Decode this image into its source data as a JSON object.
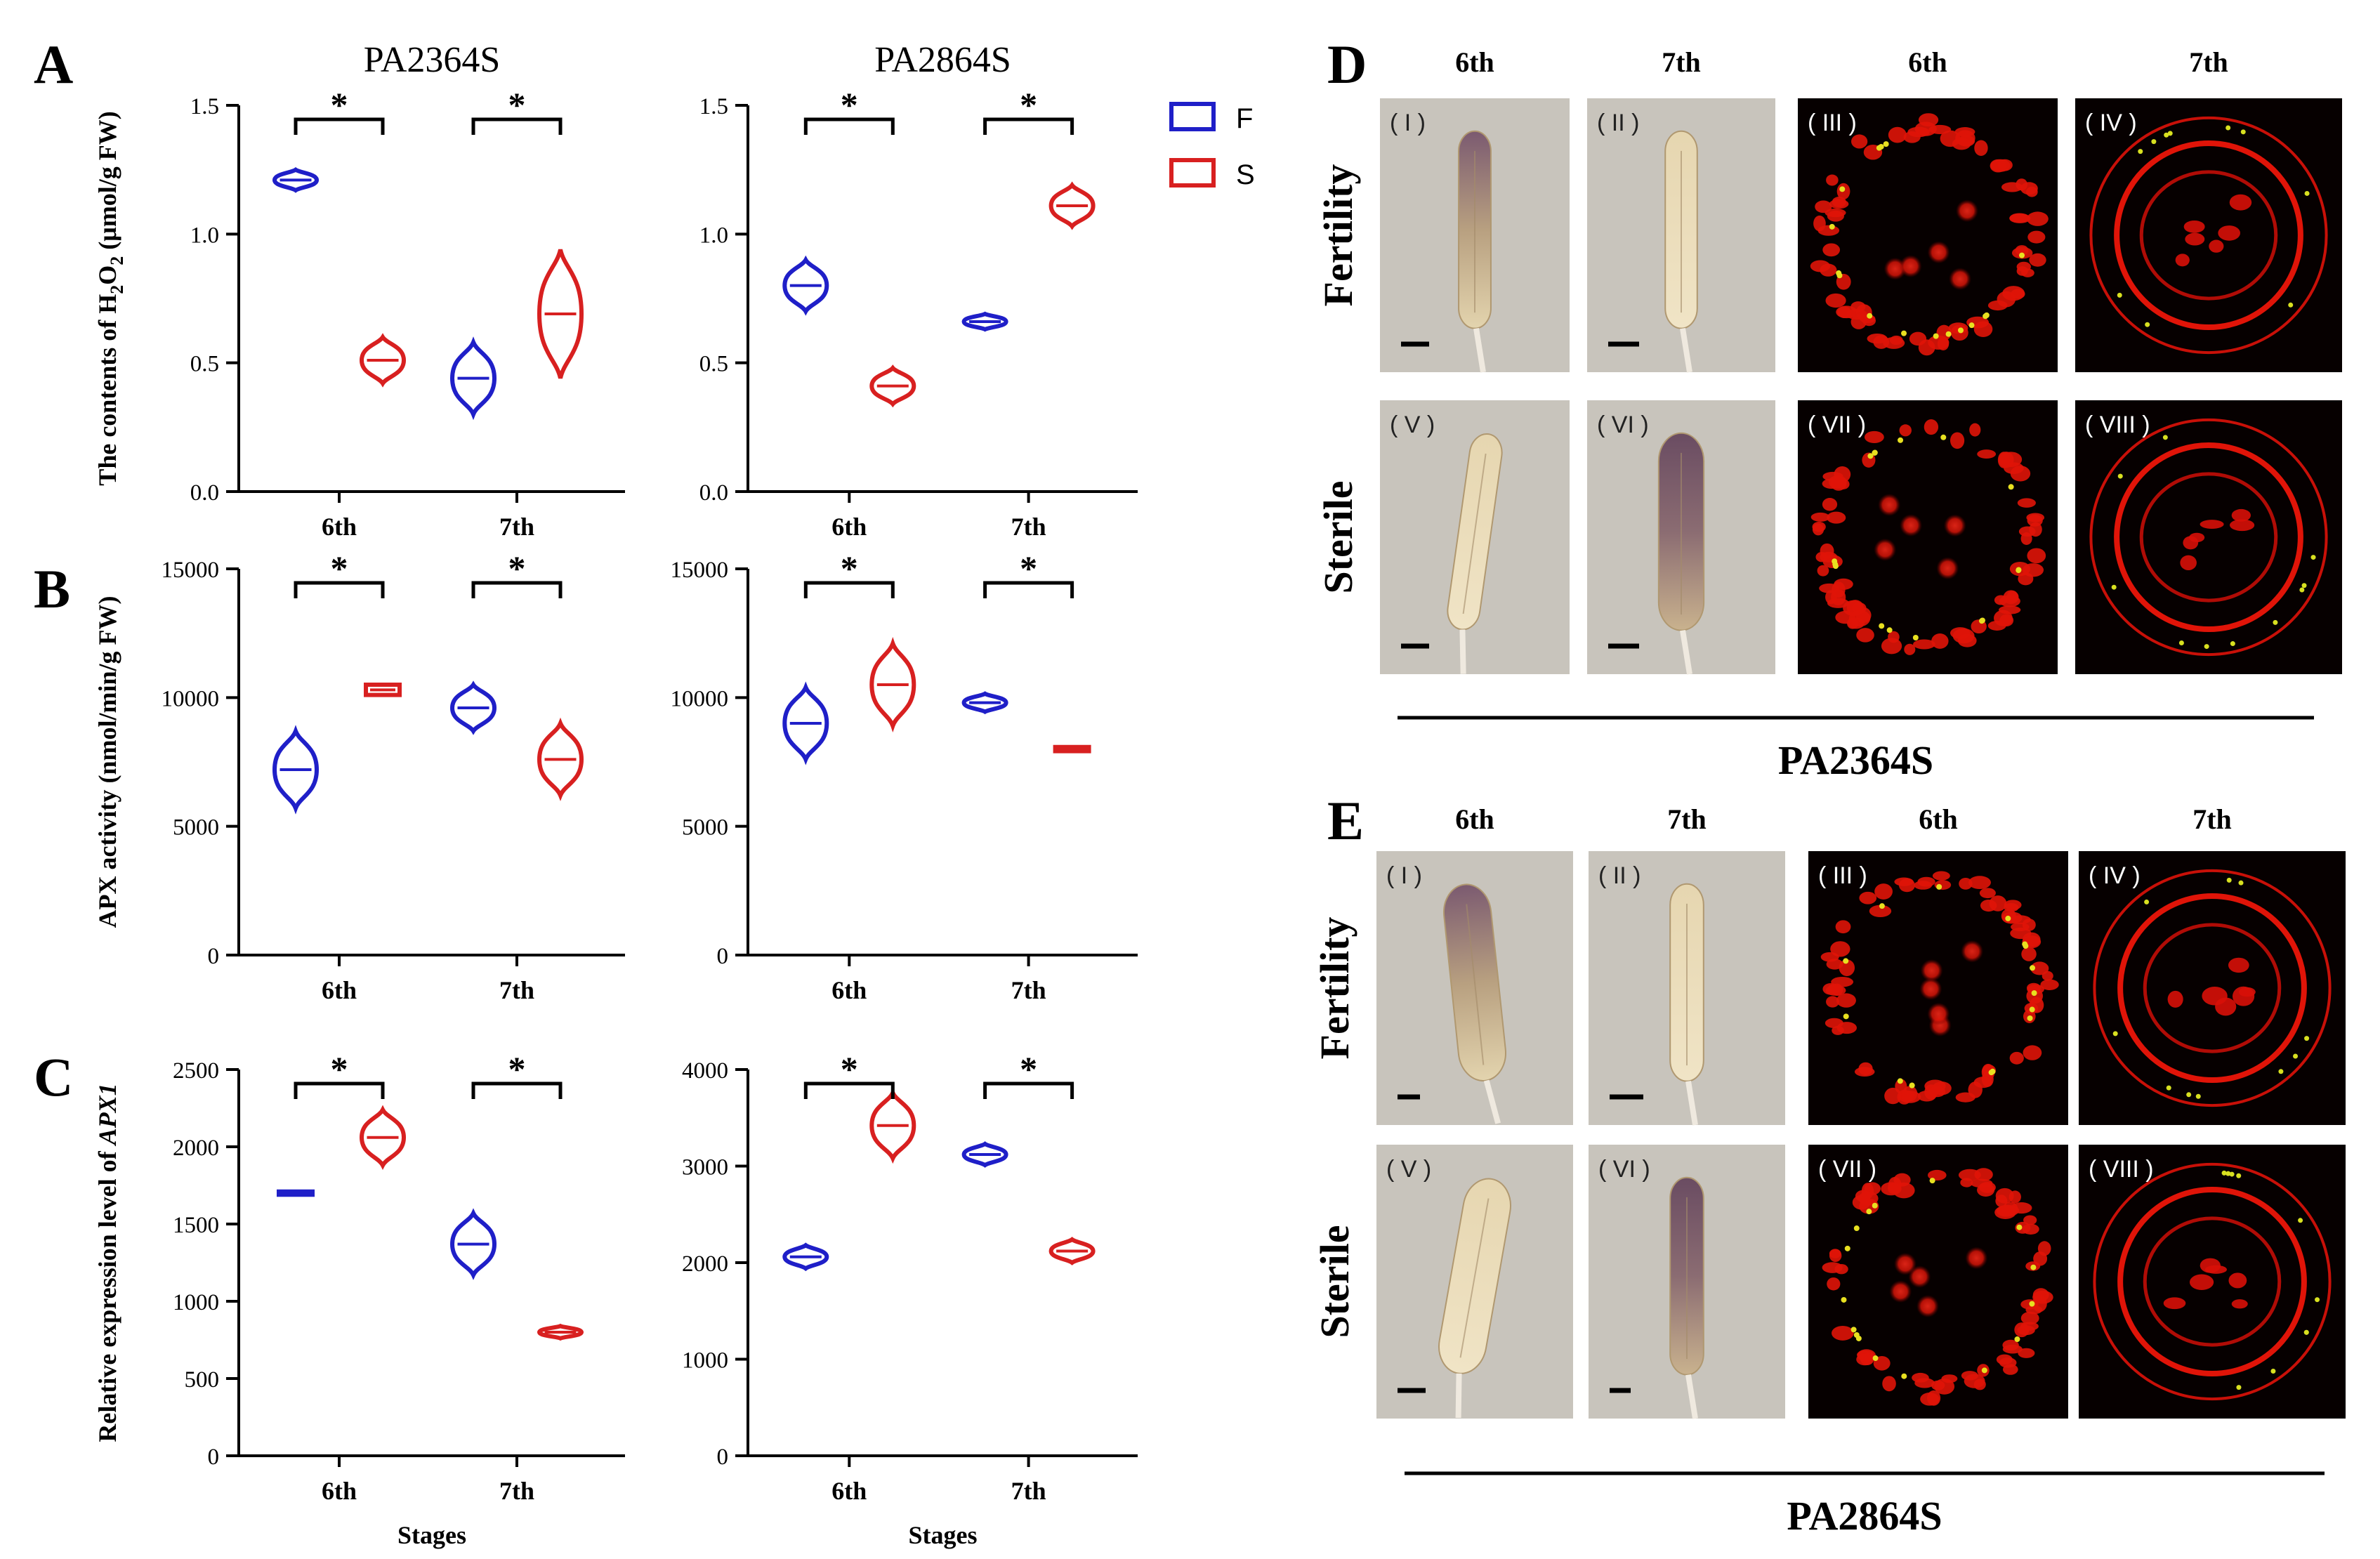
{
  "panel_letters": [
    "A",
    "B",
    "C",
    "D",
    "E"
  ],
  "legend": [
    {
      "label": "F",
      "color": "#1f1fc8"
    },
    {
      "label": "S",
      "color": "#d82020"
    }
  ],
  "colors": {
    "F": "#1f1fc8",
    "S": "#d82020"
  },
  "significance_mark": "*",
  "chart_data": [
    {
      "id": "A1",
      "type": "violin",
      "title": "PA2364S",
      "ylabel_parts": [
        "The contents of H",
        "2",
        "O",
        "2",
        " (μmol/g FW)"
      ],
      "xlabel": "",
      "categories": [
        "6th",
        "7th"
      ],
      "ylim": [
        0,
        1.5
      ],
      "yticks": [
        "0.0",
        "0.5",
        "1.0",
        "1.5"
      ],
      "series": [
        {
          "name": "F",
          "values": [
            1.21,
            0.44
          ],
          "spread": [
            0.04,
            0.14
          ]
        },
        {
          "name": "S",
          "values": [
            0.51,
            0.69
          ],
          "spread": [
            0.09,
            0.25
          ]
        }
      ]
    },
    {
      "id": "A2",
      "type": "violin",
      "title": "PA2864S",
      "ylabel_parts": [],
      "xlabel": "",
      "categories": [
        "6th",
        "7th"
      ],
      "ylim": [
        0,
        1.5
      ],
      "yticks": [
        "0.0",
        "0.5",
        "1.0",
        "1.5"
      ],
      "series": [
        {
          "name": "F",
          "values": [
            0.8,
            0.66
          ],
          "spread": [
            0.1,
            0.03
          ]
        },
        {
          "name": "S",
          "values": [
            0.41,
            1.11
          ],
          "spread": [
            0.07,
            0.08
          ]
        }
      ]
    },
    {
      "id": "B1",
      "type": "violin",
      "title": "",
      "ylabel_parts": [
        "APX activity  (nmol/min/g FW)"
      ],
      "xlabel": "",
      "categories": [
        "6th",
        "7th"
      ],
      "ylim": [
        0,
        15000
      ],
      "yticks": [
        "0",
        "5000",
        "10000",
        "15000"
      ],
      "series": [
        {
          "name": "F",
          "values": [
            7200,
            9600
          ],
          "spread": [
            1500,
            900
          ]
        },
        {
          "name": "S",
          "values": [
            10300,
            7600
          ],
          "spread": [
            200,
            1400
          ]
        }
      ]
    },
    {
      "id": "B2",
      "type": "violin",
      "title": "",
      "ylabel_parts": [],
      "xlabel": "",
      "categories": [
        "6th",
        "7th"
      ],
      "ylim": [
        0,
        15000
      ],
      "yticks": [
        "0",
        "5000",
        "10000",
        "15000"
      ],
      "series": [
        {
          "name": "F",
          "values": [
            9000,
            9800
          ],
          "spread": [
            1400,
            350
          ]
        },
        {
          "name": "S",
          "values": [
            10500,
            8000
          ],
          "spread": [
            1600,
            80
          ]
        }
      ]
    },
    {
      "id": "C1",
      "type": "violin",
      "title": "",
      "ylabel_parts": [
        "Relative expression level of ",
        "APX1"
      ],
      "xlabel": "Stages",
      "categories": [
        "6th",
        "7th"
      ],
      "ylim": [
        0,
        2500
      ],
      "yticks": [
        "0",
        "500",
        "1000",
        "1500",
        "2000",
        "2500"
      ],
      "series": [
        {
          "name": "F",
          "values": [
            1700,
            1370
          ],
          "spread": [
            10,
            200
          ]
        },
        {
          "name": "S",
          "values": [
            2060,
            800
          ],
          "spread": [
            180,
            40
          ]
        }
      ]
    },
    {
      "id": "C2",
      "type": "violin",
      "title": "",
      "ylabel_parts": [],
      "xlabel": "Stages",
      "categories": [
        "6th",
        "7th"
      ],
      "ylim": [
        0,
        4000
      ],
      "yticks": [
        "0",
        "1000",
        "2000",
        "3000",
        "4000"
      ],
      "series": [
        {
          "name": "F",
          "values": [
            2060,
            3120
          ],
          "spread": [
            120,
            110
          ]
        },
        {
          "name": "S",
          "values": [
            3420,
            2120
          ],
          "spread": [
            340,
            120
          ]
        }
      ]
    }
  ],
  "images": {
    "D": {
      "col_headers": [
        "6th",
        "7th",
        "6th",
        "7th"
      ],
      "row_labels": [
        "Fertility",
        "Sterile"
      ],
      "tiles": [
        "( I )",
        "( II )",
        "( III )",
        "( IV )",
        "( V )",
        "( VI )",
        "( VII )",
        "( VIII )"
      ],
      "caption": "PA2364S"
    },
    "E": {
      "col_headers": [
        "6th",
        "7th",
        "6th",
        "7th"
      ],
      "row_labels": [
        "Fertility",
        "Sterile"
      ],
      "tiles": [
        "( I )",
        "( II )",
        "( III )",
        "( IV )",
        "( V )",
        "( VI )",
        "( VII )",
        "( VIII )"
      ],
      "caption": "PA2864S"
    }
  }
}
